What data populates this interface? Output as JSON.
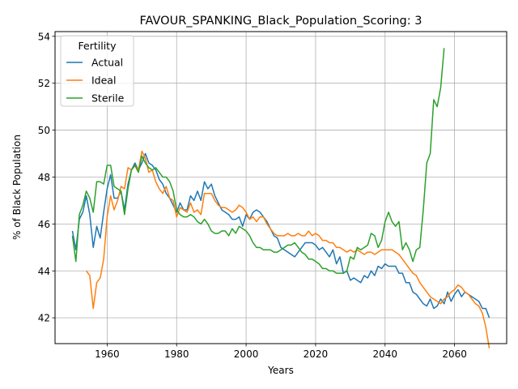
{
  "chart_data": {
    "type": "line",
    "title": "FAVOUR_SPANKING_Black_Population_Scoring: 3",
    "xlabel": "Years",
    "ylabel": "% of Black Population",
    "xlim": [
      1945,
      2075
    ],
    "ylim": [
      40.9,
      54.2
    ],
    "xticks": [
      1960,
      1980,
      2000,
      2020,
      2040,
      2060
    ],
    "yticks": [
      42,
      44,
      46,
      48,
      50,
      52,
      54
    ],
    "grid": true,
    "legend": {
      "title": "Fertility",
      "placement": "top-left"
    },
    "series": [
      {
        "name": "Actual",
        "color": "#1f77b4",
        "x": [
          1950,
          1951,
          1952,
          1953,
          1954,
          1955,
          1956,
          1957,
          1958,
          1959,
          1960,
          1961,
          1962,
          1963,
          1964,
          1965,
          1966,
          1967,
          1968,
          1969,
          1970,
          1971,
          1972,
          1973,
          1974,
          1975,
          1976,
          1977,
          1978,
          1979,
          1980,
          1981,
          1982,
          1983,
          1984,
          1985,
          1986,
          1987,
          1988,
          1989,
          1990,
          1991,
          1992,
          1993,
          1994,
          1995,
          1996,
          1997,
          1998,
          1999,
          2000,
          2001,
          2002,
          2003,
          2004,
          2005,
          2006,
          2007,
          2008,
          2009,
          2010,
          2011,
          2012,
          2013,
          2014,
          2015,
          2016,
          2017,
          2018,
          2019,
          2020,
          2021,
          2022,
          2023,
          2024,
          2025,
          2026,
          2027,
          2028,
          2029,
          2030,
          2031,
          2032,
          2033,
          2034,
          2035,
          2036,
          2037,
          2038,
          2039,
          2040,
          2041,
          2042,
          2043,
          2044,
          2045,
          2046,
          2047,
          2048,
          2049,
          2050,
          2051,
          2052,
          2053,
          2054,
          2055,
          2056,
          2057,
          2058,
          2059,
          2060,
          2061,
          2062,
          2063,
          2064,
          2065,
          2066,
          2067,
          2068,
          2069,
          2070
        ],
        "values": [
          45.7,
          44.9,
          46.2,
          46.5,
          47.2,
          46.4,
          45.0,
          45.9,
          45.4,
          46.5,
          47.5,
          48.1,
          47.1,
          47.1,
          47.4,
          46.6,
          47.7,
          48.3,
          48.6,
          48.3,
          48.6,
          49.0,
          48.6,
          48.5,
          48.3,
          47.9,
          47.7,
          47.3,
          47.1,
          46.8,
          46.5,
          46.9,
          46.6,
          46.6,
          47.2,
          47.0,
          47.4,
          47.0,
          47.8,
          47.5,
          47.7,
          47.2,
          46.9,
          46.6,
          46.5,
          46.4,
          46.2,
          46.2,
          46.3,
          45.9,
          46.4,
          46.2,
          46.5,
          46.6,
          46.5,
          46.3,
          46.1,
          45.8,
          45.5,
          45.4,
          45.0,
          44.9,
          44.8,
          44.7,
          44.6,
          44.8,
          45.0,
          45.2,
          45.2,
          45.2,
          45.1,
          44.9,
          45.0,
          44.8,
          44.6,
          44.9,
          44.3,
          44.6,
          43.9,
          44.0,
          43.6,
          43.7,
          43.6,
          43.5,
          43.8,
          43.7,
          44.0,
          43.8,
          44.2,
          44.1,
          44.3,
          44.2,
          44.2,
          44.2,
          43.9,
          43.9,
          43.5,
          43.5,
          43.1,
          43.0,
          42.8,
          42.6,
          42.5,
          42.8,
          42.4,
          42.5,
          42.8,
          42.6,
          43.1,
          42.7,
          43.0,
          43.2,
          42.9,
          43.1,
          43.0,
          42.9,
          42.8,
          42.7,
          42.4,
          42.4,
          42.0
        ]
      },
      {
        "name": "Ideal",
        "color": "#ff7f0e",
        "x": [
          1954,
          1955,
          1956,
          1957,
          1958,
          1959,
          1960,
          1961,
          1962,
          1963,
          1964,
          1965,
          1966,
          1967,
          1968,
          1969,
          1970,
          1971,
          1972,
          1973,
          1974,
          1975,
          1976,
          1977,
          1978,
          1979,
          1980,
          1981,
          1982,
          1983,
          1984,
          1985,
          1986,
          1987,
          1988,
          1989,
          1990,
          1991,
          1992,
          1993,
          1994,
          1995,
          1996,
          1997,
          1998,
          1999,
          2000,
          2001,
          2002,
          2003,
          2004,
          2005,
          2006,
          2007,
          2008,
          2009,
          2010,
          2011,
          2012,
          2013,
          2014,
          2015,
          2016,
          2017,
          2018,
          2019,
          2020,
          2021,
          2022,
          2023,
          2024,
          2025,
          2026,
          2027,
          2028,
          2029,
          2030,
          2031,
          2032,
          2033,
          2034,
          2035,
          2036,
          2037,
          2038,
          2039,
          2040,
          2041,
          2042,
          2043,
          2044,
          2045,
          2046,
          2047,
          2048,
          2049,
          2050,
          2051,
          2052,
          2053,
          2054,
          2055,
          2056,
          2057,
          2058,
          2059,
          2060,
          2061,
          2062,
          2063,
          2064,
          2065,
          2066,
          2067,
          2068,
          2069,
          2070
        ],
        "values": [
          44.0,
          43.8,
          42.4,
          43.5,
          43.7,
          44.5,
          46.3,
          47.2,
          46.6,
          47.0,
          47.6,
          47.5,
          48.4,
          48.3,
          48.5,
          48.3,
          49.1,
          48.8,
          48.2,
          48.3,
          47.8,
          47.5,
          47.3,
          47.6,
          47.1,
          47.0,
          46.3,
          46.7,
          46.6,
          46.5,
          46.9,
          46.5,
          46.6,
          46.4,
          47.3,
          47.3,
          47.3,
          47.0,
          46.8,
          46.7,
          46.7,
          46.6,
          46.5,
          46.6,
          46.8,
          46.7,
          46.5,
          46.2,
          46.3,
          46.1,
          46.3,
          46.3,
          46.0,
          45.8,
          45.6,
          45.5,
          45.5,
          45.5,
          45.6,
          45.5,
          45.5,
          45.6,
          45.5,
          45.5,
          45.7,
          45.5,
          45.6,
          45.5,
          45.3,
          45.3,
          45.2,
          45.2,
          45.0,
          45.0,
          44.9,
          44.8,
          44.9,
          44.8,
          44.9,
          44.8,
          44.7,
          44.8,
          44.8,
          44.7,
          44.8,
          44.9,
          44.9,
          44.9,
          44.9,
          44.8,
          44.7,
          44.5,
          44.3,
          44.1,
          43.9,
          43.8,
          43.5,
          43.3,
          43.1,
          42.9,
          42.8,
          42.7,
          42.6,
          42.8,
          42.9,
          43.1,
          43.2,
          43.4,
          43.3,
          43.1,
          43.0,
          42.8,
          42.6,
          42.5,
          42.2,
          41.6,
          40.7
        ]
      },
      {
        "name": "Sterile",
        "color": "#2ca02c",
        "x": [
          1950,
          1951,
          1952,
          1953,
          1954,
          1955,
          1956,
          1957,
          1958,
          1959,
          1960,
          1961,
          1962,
          1963,
          1964,
          1965,
          1966,
          1967,
          1968,
          1969,
          1970,
          1971,
          1972,
          1973,
          1974,
          1975,
          1976,
          1977,
          1978,
          1979,
          1980,
          1981,
          1982,
          1983,
          1984,
          1985,
          1986,
          1987,
          1988,
          1989,
          1990,
          1991,
          1992,
          1993,
          1994,
          1995,
          1996,
          1997,
          1998,
          1999,
          2000,
          2001,
          2002,
          2003,
          2004,
          2005,
          2006,
          2007,
          2008,
          2009,
          2010,
          2011,
          2012,
          2013,
          2014,
          2015,
          2016,
          2017,
          2018,
          2019,
          2020,
          2021,
          2022,
          2023,
          2024,
          2025,
          2026,
          2027,
          2028,
          2029,
          2030,
          2031,
          2032,
          2033,
          2034,
          2035,
          2036,
          2037,
          2038,
          2039,
          2040,
          2041,
          2042,
          2043,
          2044,
          2045,
          2046,
          2047,
          2048,
          2049,
          2050,
          2051,
          2052,
          2053,
          2054,
          2055,
          2056,
          2057
        ],
        "values": [
          45.5,
          44.4,
          46.4,
          46.8,
          47.4,
          47.1,
          46.5,
          47.8,
          47.8,
          47.7,
          48.5,
          48.5,
          47.6,
          47.5,
          47.4,
          46.4,
          47.5,
          48.3,
          48.5,
          48.2,
          48.9,
          48.6,
          48.4,
          48.3,
          48.4,
          48.2,
          48.0,
          48.0,
          47.8,
          47.4,
          46.6,
          46.4,
          46.3,
          46.3,
          46.4,
          46.3,
          46.1,
          46.0,
          46.2,
          46.0,
          45.7,
          45.6,
          45.6,
          45.7,
          45.7,
          45.5,
          45.8,
          45.6,
          45.9,
          45.8,
          45.7,
          45.5,
          45.2,
          45.0,
          45.0,
          44.9,
          44.9,
          44.9,
          44.8,
          44.8,
          44.9,
          45.0,
          45.1,
          45.1,
          45.2,
          45.0,
          44.8,
          44.7,
          44.5,
          44.5,
          44.4,
          44.3,
          44.1,
          44.1,
          44.0,
          44.0,
          43.9,
          43.9,
          43.9,
          44.0,
          44.6,
          44.5,
          45.0,
          44.9,
          45.0,
          45.1,
          45.6,
          45.5,
          45.0,
          45.3,
          46.1,
          46.5,
          46.1,
          45.9,
          46.1,
          44.9,
          45.2,
          44.9,
          44.4,
          44.9,
          45.0,
          46.6,
          48.6,
          49.0,
          51.3,
          51.0,
          51.8,
          53.5
        ]
      }
    ]
  }
}
